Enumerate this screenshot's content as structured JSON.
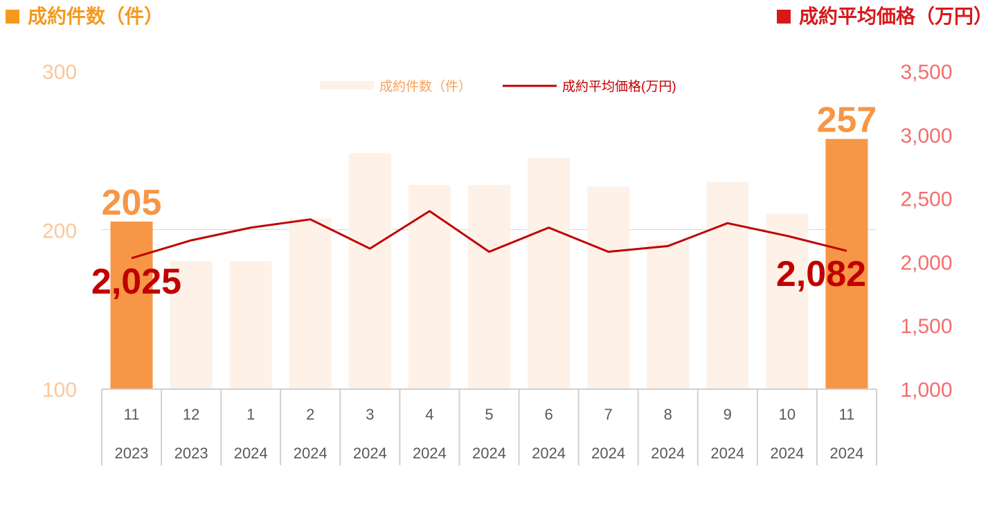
{
  "header": {
    "left_title": "成約件数（件）",
    "right_title": "成約平均価格（万円）"
  },
  "colors": {
    "bar_muted": "#FDF1E8",
    "bar_highlight": "#F79646",
    "line": "#C00000",
    "left_axis": "#F9C89B",
    "right_axis": "#F26E6E",
    "header_left": "#F39A1E",
    "header_right": "#D7191C"
  },
  "chart_data": {
    "type": "bar",
    "categories": [
      {
        "month": "11",
        "year": "2023"
      },
      {
        "month": "12",
        "year": "2023"
      },
      {
        "month": "1",
        "year": "2024"
      },
      {
        "month": "2",
        "year": "2024"
      },
      {
        "month": "3",
        "year": "2024"
      },
      {
        "month": "4",
        "year": "2024"
      },
      {
        "month": "5",
        "year": "2024"
      },
      {
        "month": "6",
        "year": "2024"
      },
      {
        "month": "7",
        "year": "2024"
      },
      {
        "month": "8",
        "year": "2024"
      },
      {
        "month": "9",
        "year": "2024"
      },
      {
        "month": "10",
        "year": "2024"
      },
      {
        "month": "11",
        "year": "2024"
      }
    ],
    "series": [
      {
        "name": "成約件数（件）",
        "type": "bar",
        "axis": "left",
        "values": [
          205,
          180,
          180,
          207,
          248,
          228,
          228,
          245,
          227,
          193,
          230,
          210,
          257
        ],
        "highlight": [
          0,
          12
        ]
      },
      {
        "name": "成約平均価格(万円)",
        "type": "line",
        "axis": "right",
        "values": [
          2025,
          2165,
          2265,
          2330,
          2100,
          2395,
          2075,
          2265,
          2075,
          2120,
          2300,
          2200,
          2082
        ]
      }
    ],
    "left_axis": {
      "ylim": [
        100,
        300
      ],
      "ticks": [
        "100",
        "200",
        "300"
      ]
    },
    "right_axis": {
      "ylim": [
        1000,
        3500
      ],
      "ticks": [
        "1,000",
        "1,500",
        "2,000",
        "2,500",
        "3,000",
        "3,500"
      ]
    },
    "annotations": {
      "bar_first": "205",
      "bar_last": "257",
      "line_first": "2,025",
      "line_last": "2,082"
    },
    "legend_position": "top-center",
    "grid": "horizontal-at-200"
  }
}
